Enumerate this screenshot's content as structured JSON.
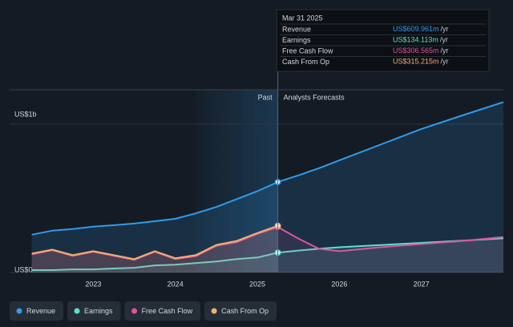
{
  "chart_data": {
    "type": "line",
    "x": [
      2022.25,
      2022.5,
      2022.75,
      2023.0,
      2023.25,
      2023.5,
      2023.75,
      2024.0,
      2024.25,
      2024.5,
      2024.75,
      2025.0,
      2025.25,
      2025.5,
      2025.75,
      2026.0,
      2026.5,
      2027.0,
      2027.5,
      2028.0
    ],
    "series": [
      {
        "name": "Revenue",
        "color": "#2f9ceb",
        "values": [
          255,
          282,
          293,
          309,
          319,
          330,
          346,
          362,
          399,
          442,
          495,
          548,
          609.961,
          655,
          703,
          756,
          862,
          968,
          1059,
          1149
        ]
      },
      {
        "name": "Earnings",
        "color": "#5ce0cf",
        "values": [
          16,
          16,
          21,
          21,
          27,
          32,
          48,
          53,
          64,
          74,
          90,
          101,
          134.113,
          148,
          160,
          170,
          185,
          200,
          215,
          230
        ]
      },
      {
        "name": "Free Cash Flow",
        "color": "#e0559a",
        "values": [
          122,
          150,
          112,
          140,
          112,
          85,
          140,
          90,
          110,
          180,
          205,
          260,
          306.565,
          229,
          160,
          144,
          170,
          192,
          213,
          239
        ]
      },
      {
        "name": "Cash From Op",
        "color": "#f2b070",
        "values": [
          128,
          154,
          117,
          144,
          117,
          90,
          144,
          96,
          117,
          186,
          213,
          266,
          315.215,
          null,
          null,
          null,
          null,
          null,
          null,
          null
        ]
      }
    ],
    "xlim": [
      2021.98,
      2028.0
    ],
    "xticks": [
      2023,
      2024,
      2025,
      2026,
      2027
    ],
    "ylim": [
      0,
      1232
    ],
    "yticks": [
      {
        "value": 0,
        "label": "US$0"
      },
      {
        "value": 1000,
        "label": "US$1b"
      }
    ],
    "grid": true,
    "past_region": [
      2024.25,
      2025.25
    ],
    "annotations": {
      "past": "Past",
      "forecast": "Analysts Forecasts"
    },
    "tooltip": {
      "title": "Mar 31 2025",
      "rows": [
        {
          "label": "Revenue",
          "value": "US$609.961m",
          "unit": "/yr"
        },
        {
          "label": "Earnings",
          "value": "US$134.113m",
          "unit": "/yr"
        },
        {
          "label": "Free Cash Flow",
          "value": "US$306.565m",
          "unit": "/yr"
        },
        {
          "label": "Cash From Op",
          "value": "US$315.215m",
          "unit": "/yr"
        }
      ]
    }
  }
}
